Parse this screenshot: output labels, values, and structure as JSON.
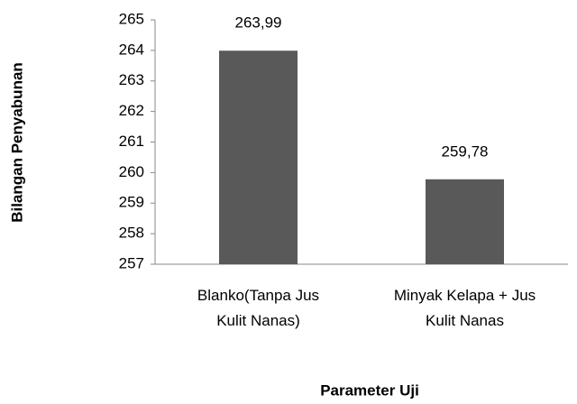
{
  "chart_data": {
    "type": "bar",
    "categories": [
      "Blanko(Tanpa Jus Kulit Nanas)",
      "Minyak Kelapa + Jus Kulit Nanas"
    ],
    "values": [
      263.99,
      259.78
    ],
    "value_labels": [
      "263,99",
      "259,78"
    ],
    "color": "#595959",
    "ylim": [
      257,
      265
    ],
    "yticks": [
      257,
      258,
      259,
      260,
      261,
      262,
      263,
      264,
      265
    ],
    "y_label": "Bilangan Penyabunan",
    "x_label": "Parameter Uji",
    "grid": false
  }
}
